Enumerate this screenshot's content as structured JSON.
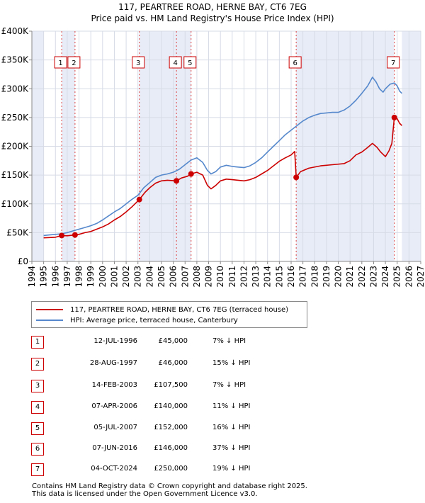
{
  "title": {
    "line1": "117, PEARTREE ROAD, HERNE BAY, CT6 7EG",
    "line2": "Price paid vs. HM Land Registry's House Price Index (HPI)"
  },
  "chart_data": {
    "type": "line",
    "title": "117, PEARTREE ROAD, HERNE BAY, CT6 7EG — Price paid vs. HM Land Registry's House Price Index (HPI)",
    "xlabel": "",
    "ylabel": "",
    "xlim": [
      1994,
      2027
    ],
    "ylim": [
      0,
      400000
    ],
    "x_ticks": [
      "1994",
      "1995",
      "1996",
      "1997",
      "1998",
      "1999",
      "2000",
      "2001",
      "2002",
      "2003",
      "2004",
      "2005",
      "2006",
      "2007",
      "2008",
      "2009",
      "2010",
      "2011",
      "2012",
      "2013",
      "2014",
      "2015",
      "2016",
      "2017",
      "2018",
      "2019",
      "2020",
      "2021",
      "2022",
      "2023",
      "2024",
      "2025",
      "2026",
      "2027"
    ],
    "y_ticks": [
      {
        "value": 0,
        "label": "£0"
      },
      {
        "value": 50000,
        "label": "£50K"
      },
      {
        "value": 100000,
        "label": "£100K"
      },
      {
        "value": 150000,
        "label": "£150K"
      },
      {
        "value": 200000,
        "label": "£200K"
      },
      {
        "value": 250000,
        "label": "£250K"
      },
      {
        "value": 300000,
        "label": "£300K"
      },
      {
        "value": 350000,
        "label": "£350K"
      },
      {
        "value": 400000,
        "label": "£400K"
      }
    ],
    "grid": true,
    "series": [
      {
        "name": "117, PEARTREE ROAD, HERNE BAY, CT6 7EG (terraced house)",
        "color": "#cc0000",
        "points": [
          [
            1995.0,
            41000
          ],
          [
            1995.5,
            41500
          ],
          [
            1996.0,
            42000
          ],
          [
            1996.53,
            45000
          ],
          [
            1997.0,
            44500
          ],
          [
            1997.66,
            46000
          ],
          [
            1998.0,
            47000
          ],
          [
            1998.5,
            50000
          ],
          [
            1999.0,
            52000
          ],
          [
            1999.5,
            56000
          ],
          [
            2000.0,
            60000
          ],
          [
            2000.5,
            65000
          ],
          [
            2001.0,
            72000
          ],
          [
            2001.5,
            78000
          ],
          [
            2002.0,
            86000
          ],
          [
            2002.5,
            95000
          ],
          [
            2003.12,
            107500
          ],
          [
            2003.6,
            120000
          ],
          [
            2004.0,
            128000
          ],
          [
            2004.5,
            136000
          ],
          [
            2005.0,
            140000
          ],
          [
            2005.5,
            141000
          ],
          [
            2006.27,
            140000
          ],
          [
            2006.7,
            145000
          ],
          [
            2007.2,
            148000
          ],
          [
            2007.51,
            152000
          ],
          [
            2008.0,
            155000
          ],
          [
            2008.5,
            150000
          ],
          [
            2008.9,
            132000
          ],
          [
            2009.2,
            126000
          ],
          [
            2009.6,
            132000
          ],
          [
            2010.0,
            140000
          ],
          [
            2010.5,
            143000
          ],
          [
            2011.0,
            142000
          ],
          [
            2011.5,
            141000
          ],
          [
            2012.0,
            140000
          ],
          [
            2012.5,
            142000
          ],
          [
            2013.0,
            146000
          ],
          [
            2013.5,
            152000
          ],
          [
            2014.0,
            158000
          ],
          [
            2014.5,
            166000
          ],
          [
            2015.0,
            174000
          ],
          [
            2015.5,
            180000
          ],
          [
            2016.0,
            185000
          ],
          [
            2016.3,
            191000
          ],
          [
            2016.43,
            146000
          ],
          [
            2016.8,
            156000
          ],
          [
            2017.5,
            162000
          ],
          [
            2018.5,
            166000
          ],
          [
            2019.5,
            168000
          ],
          [
            2020.5,
            170000
          ],
          [
            2021.0,
            175000
          ],
          [
            2021.5,
            185000
          ],
          [
            2022.0,
            190000
          ],
          [
            2022.5,
            198000
          ],
          [
            2022.9,
            205000
          ],
          [
            2023.3,
            198000
          ],
          [
            2023.6,
            190000
          ],
          [
            2024.0,
            182000
          ],
          [
            2024.3,
            192000
          ],
          [
            2024.55,
            205000
          ],
          [
            2024.76,
            250000
          ],
          [
            2025.0,
            248000
          ],
          [
            2025.2,
            240000
          ],
          [
            2025.4,
            236000
          ]
        ]
      },
      {
        "name": "HPI: Average price, terraced house, Canterbury",
        "color": "#5588cc",
        "points": [
          [
            1995.0,
            45000
          ],
          [
            1995.5,
            46000
          ],
          [
            1996.0,
            47000
          ],
          [
            1996.5,
            48000
          ],
          [
            1997.0,
            50000
          ],
          [
            1997.5,
            53000
          ],
          [
            1998.0,
            56000
          ],
          [
            1998.5,
            59000
          ],
          [
            1999.0,
            62000
          ],
          [
            1999.5,
            66000
          ],
          [
            2000.0,
            72000
          ],
          [
            2000.5,
            79000
          ],
          [
            2001.0,
            86000
          ],
          [
            2001.5,
            92000
          ],
          [
            2002.0,
            100000
          ],
          [
            2002.5,
            108000
          ],
          [
            2003.0,
            115000
          ],
          [
            2003.5,
            128000
          ],
          [
            2004.0,
            137000
          ],
          [
            2004.5,
            146000
          ],
          [
            2005.0,
            150000
          ],
          [
            2005.5,
            152000
          ],
          [
            2006.0,
            155000
          ],
          [
            2006.5,
            160000
          ],
          [
            2007.0,
            168000
          ],
          [
            2007.5,
            176000
          ],
          [
            2008.0,
            180000
          ],
          [
            2008.5,
            172000
          ],
          [
            2008.9,
            158000
          ],
          [
            2009.2,
            152000
          ],
          [
            2009.6,
            156000
          ],
          [
            2010.0,
            164000
          ],
          [
            2010.5,
            167000
          ],
          [
            2011.0,
            165000
          ],
          [
            2011.5,
            164000
          ],
          [
            2012.0,
            163000
          ],
          [
            2012.5,
            166000
          ],
          [
            2013.0,
            172000
          ],
          [
            2013.5,
            180000
          ],
          [
            2014.0,
            190000
          ],
          [
            2014.5,
            200000
          ],
          [
            2015.0,
            210000
          ],
          [
            2015.5,
            220000
          ],
          [
            2016.0,
            228000
          ],
          [
            2016.5,
            236000
          ],
          [
            2017.0,
            244000
          ],
          [
            2017.5,
            250000
          ],
          [
            2018.0,
            254000
          ],
          [
            2018.5,
            257000
          ],
          [
            2019.0,
            258000
          ],
          [
            2019.5,
            259000
          ],
          [
            2020.0,
            259000
          ],
          [
            2020.5,
            263000
          ],
          [
            2021.0,
            270000
          ],
          [
            2021.5,
            280000
          ],
          [
            2022.0,
            292000
          ],
          [
            2022.5,
            305000
          ],
          [
            2022.9,
            320000
          ],
          [
            2023.2,
            312000
          ],
          [
            2023.5,
            300000
          ],
          [
            2023.8,
            294000
          ],
          [
            2024.0,
            300000
          ],
          [
            2024.4,
            308000
          ],
          [
            2024.76,
            310000
          ],
          [
            2025.0,
            305000
          ],
          [
            2025.2,
            296000
          ],
          [
            2025.4,
            292000
          ]
        ]
      }
    ],
    "sale_markers": [
      {
        "label": "1",
        "x": 1996.53,
        "y": 45000
      },
      {
        "label": "2",
        "x": 1997.66,
        "y": 46000
      },
      {
        "label": "3",
        "x": 2003.12,
        "y": 107500
      },
      {
        "label": "4",
        "x": 2006.27,
        "y": 140000
      },
      {
        "label": "5",
        "x": 2007.51,
        "y": 152000
      },
      {
        "label": "6",
        "x": 2016.43,
        "y": 146000
      },
      {
        "label": "7",
        "x": 2024.76,
        "y": 250000
      }
    ],
    "shaded_ranges": [
      [
        1994,
        1995.0
      ],
      [
        2025.4,
        2027
      ]
    ]
  },
  "legend": {
    "items": [
      {
        "label": "117, PEARTREE ROAD, HERNE BAY, CT6 7EG (terraced house)",
        "color": "#cc0000"
      },
      {
        "label": "HPI: Average price, terraced house, Canterbury",
        "color": "#5588cc"
      }
    ]
  },
  "sales": [
    {
      "num": "1",
      "date": "12-JUL-1996",
      "price": "£45,000",
      "hpi": "7% ↓ HPI"
    },
    {
      "num": "2",
      "date": "28-AUG-1997",
      "price": "£46,000",
      "hpi": "15% ↓ HPI"
    },
    {
      "num": "3",
      "date": "14-FEB-2003",
      "price": "£107,500",
      "hpi": "7% ↓ HPI"
    },
    {
      "num": "4",
      "date": "07-APR-2006",
      "price": "£140,000",
      "hpi": "11% ↓ HPI"
    },
    {
      "num": "5",
      "date": "05-JUL-2007",
      "price": "£152,000",
      "hpi": "16% ↓ HPI"
    },
    {
      "num": "6",
      "date": "07-JUN-2016",
      "price": "£146,000",
      "hpi": "37% ↓ HPI"
    },
    {
      "num": "7",
      "date": "04-OCT-2024",
      "price": "£250,000",
      "hpi": "19% ↓ HPI"
    }
  ],
  "footer": {
    "line1": "Contains HM Land Registry data © Crown copyright and database right 2025.",
    "line2": "This data is licensed under the Open Government Licence v3.0."
  }
}
